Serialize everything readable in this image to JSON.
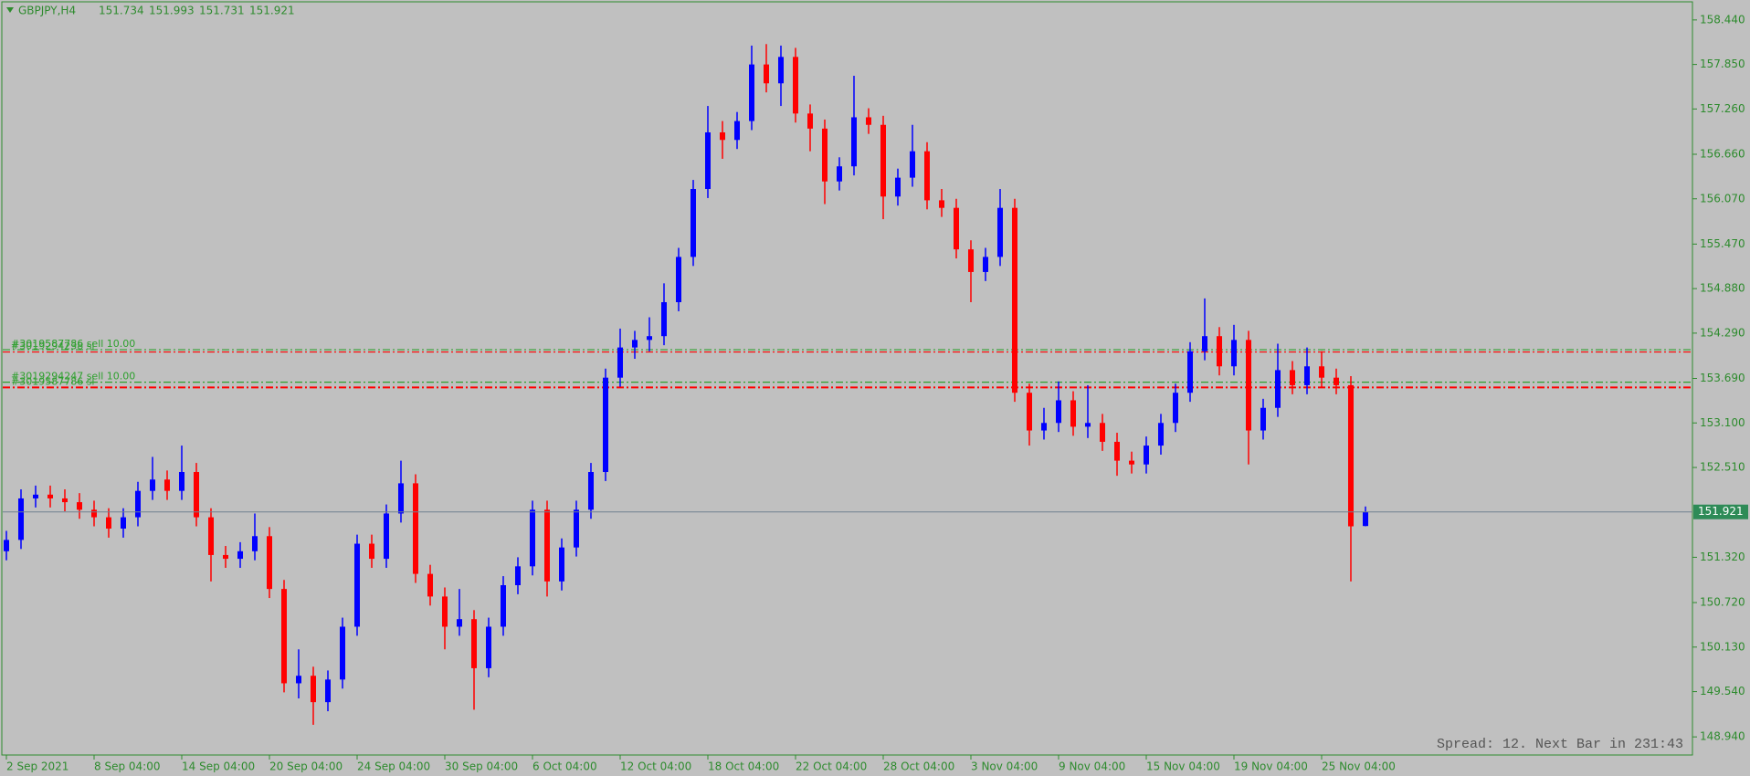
{
  "chart_data": {
    "type": "candlestick",
    "title": "GBPJPY,H4",
    "up_color": "#0000ff",
    "down_color": "#ff0000",
    "categories": [
      "2 Sep 2021",
      null,
      null,
      null,
      null,
      null,
      "8 Sep 04:00",
      null,
      null,
      null,
      null,
      null,
      "14 Sep 04:00",
      null,
      null,
      null,
      null,
      null,
      "20 Sep 04:00",
      null,
      null,
      null,
      null,
      null,
      "24 Sep 04:00",
      null,
      null,
      null,
      null,
      null,
      "30 Sep 04:00",
      null,
      null,
      null,
      null,
      null,
      "6 Oct 04:00",
      null,
      null,
      null,
      null,
      null,
      "12 Oct 04:00",
      null,
      null,
      null,
      null,
      null,
      "18 Oct 04:00",
      null,
      null,
      null,
      null,
      null,
      "22 Oct 04:00",
      null,
      null,
      null,
      null,
      null,
      "28 Oct 04:00",
      null,
      null,
      null,
      null,
      null,
      "3 Nov 04:00",
      null,
      null,
      null,
      null,
      null,
      "9 Nov 04:00",
      null,
      null,
      null,
      null,
      null,
      "15 Nov 04:00",
      null,
      null,
      null,
      null,
      null,
      "19 Nov 04:00",
      null,
      null,
      null,
      null,
      null,
      "25 Nov 04:00",
      null,
      null,
      null
    ],
    "open": [
      151.4,
      151.55,
      152.1,
      152.15,
      152.1,
      152.05,
      151.95,
      151.85,
      151.7,
      151.85,
      152.2,
      152.35,
      152.2,
      152.45,
      151.85,
      151.35,
      151.3,
      151.4,
      151.6,
      150.9,
      149.65,
      149.75,
      149.4,
      149.7,
      150.4,
      151.5,
      151.3,
      151.9,
      152.3,
      151.1,
      150.8,
      150.4,
      150.5,
      149.85,
      150.4,
      150.95,
      151.2,
      151.95,
      151.0,
      151.45,
      151.95,
      152.45,
      153.7,
      154.1,
      154.2,
      154.25,
      154.7,
      155.3,
      156.2,
      156.95,
      156.85,
      157.1,
      157.85,
      157.6,
      157.95,
      157.2,
      157.0,
      156.3,
      156.5,
      157.15,
      157.05,
      156.1,
      156.35,
      156.7,
      156.05,
      155.95,
      155.4,
      155.1,
      155.3,
      155.95,
      153.5,
      153.0,
      153.1,
      153.4,
      153.05,
      153.1,
      152.85,
      152.6,
      152.55,
      152.8,
      153.1,
      153.5,
      154.05,
      154.25,
      153.85,
      154.2,
      153.0,
      153.3,
      153.8,
      153.6,
      153.85,
      153.7,
      153.6,
      151.734
    ],
    "high": [
      151.67,
      152.22,
      152.27,
      152.27,
      152.22,
      152.17,
      152.07,
      151.97,
      151.97,
      152.32,
      152.65,
      152.47,
      152.8,
      152.57,
      151.97,
      151.47,
      151.52,
      151.9,
      151.72,
      151.02,
      150.1,
      149.87,
      149.82,
      150.52,
      151.62,
      151.62,
      152.02,
      152.6,
      152.42,
      151.22,
      150.92,
      150.9,
      150.62,
      150.52,
      151.07,
      151.32,
      152.07,
      152.07,
      151.57,
      152.07,
      152.57,
      153.82,
      154.35,
      154.32,
      154.5,
      154.95,
      155.42,
      156.32,
      157.3,
      157.1,
      157.22,
      158.1,
      158.12,
      158.1,
      158.07,
      157.32,
      157.12,
      156.62,
      157.7,
      157.27,
      157.17,
      156.47,
      157.05,
      156.82,
      156.2,
      156.07,
      155.52,
      155.42,
      156.2,
      156.07,
      153.62,
      153.3,
      153.65,
      153.52,
      153.6,
      153.22,
      152.97,
      152.72,
      152.92,
      153.22,
      153.62,
      154.17,
      154.75,
      154.37,
      154.4,
      154.32,
      153.42,
      154.15,
      153.92,
      154.1,
      154.05,
      153.82,
      153.72,
      151.993
    ],
    "low": [
      151.28,
      151.43,
      151.98,
      151.98,
      151.93,
      151.83,
      151.73,
      151.58,
      151.58,
      151.73,
      152.08,
      152.08,
      152.08,
      151.73,
      151.0,
      151.18,
      151.18,
      151.28,
      150.78,
      149.53,
      149.45,
      149.1,
      149.28,
      149.58,
      150.28,
      151.18,
      151.18,
      151.78,
      150.98,
      150.68,
      150.1,
      150.28,
      149.3,
      149.73,
      150.28,
      150.83,
      151.08,
      150.8,
      150.88,
      151.33,
      151.83,
      152.33,
      153.58,
      153.95,
      154.05,
      154.13,
      154.58,
      155.18,
      156.08,
      156.6,
      156.73,
      156.98,
      157.48,
      157.3,
      157.08,
      156.7,
      156.0,
      156.18,
      156.38,
      156.93,
      155.8,
      155.98,
      156.23,
      155.93,
      155.83,
      155.28,
      154.7,
      154.98,
      155.18,
      153.38,
      152.8,
      152.88,
      152.98,
      152.93,
      152.9,
      152.73,
      152.4,
      152.43,
      152.43,
      152.68,
      152.98,
      153.38,
      153.93,
      153.73,
      153.73,
      152.55,
      152.88,
      153.18,
      153.48,
      153.48,
      153.58,
      153.48,
      151.0,
      151.731
    ],
    "close": [
      151.55,
      152.1,
      152.15,
      152.1,
      152.05,
      151.95,
      151.85,
      151.7,
      151.85,
      152.2,
      152.35,
      152.2,
      152.45,
      151.85,
      151.35,
      151.3,
      151.4,
      151.6,
      150.9,
      149.65,
      149.75,
      149.4,
      149.7,
      150.4,
      151.5,
      151.3,
      151.9,
      152.3,
      151.1,
      150.8,
      150.4,
      150.5,
      149.85,
      150.4,
      150.95,
      151.2,
      151.95,
      151.0,
      151.45,
      151.95,
      152.45,
      153.7,
      154.1,
      154.2,
      154.25,
      154.7,
      155.3,
      156.2,
      156.95,
      156.85,
      157.1,
      157.85,
      157.6,
      157.95,
      157.2,
      157.0,
      156.3,
      156.5,
      157.15,
      157.05,
      156.1,
      156.35,
      156.7,
      156.05,
      155.95,
      155.4,
      155.1,
      155.3,
      155.95,
      153.5,
      153.0,
      153.1,
      153.4,
      153.05,
      153.1,
      152.85,
      152.6,
      152.55,
      152.8,
      153.1,
      153.5,
      154.05,
      154.25,
      153.85,
      154.2,
      153.0,
      153.3,
      153.8,
      153.6,
      153.85,
      153.7,
      153.6,
      151.73,
      151.921
    ],
    "ylim": [
      148.7,
      158.68
    ],
    "yticks": [
      {
        "value": 158.44,
        "label": "158.440"
      },
      {
        "value": 157.85,
        "label": "157.850"
      },
      {
        "value": 157.26,
        "label": "157.260"
      },
      {
        "value": 156.66,
        "label": "156.660"
      },
      {
        "value": 156.07,
        "label": "156.070"
      },
      {
        "value": 155.47,
        "label": "155.470"
      },
      {
        "value": 154.88,
        "label": "154.880"
      },
      {
        "value": 154.29,
        "label": "154.290"
      },
      {
        "value": 153.69,
        "label": "153.690"
      },
      {
        "value": 153.1,
        "label": "153.100"
      },
      {
        "value": 152.51,
        "label": "152.510"
      },
      {
        "value": 151.32,
        "label": "151.320"
      },
      {
        "value": 150.72,
        "label": "150.720"
      },
      {
        "value": 150.13,
        "label": "150.130"
      },
      {
        "value": 149.54,
        "label": "149.540"
      },
      {
        "value": 148.94,
        "label": "148.940"
      }
    ],
    "orders": [
      {
        "label": "#3019587786 sell 10.00",
        "price": 154.07,
        "color": "#2ea02e"
      },
      {
        "label": "#3019294238 sl",
        "price": 154.04,
        "color": "#ff0000"
      },
      {
        "label": "#3019294247 sell 10.00",
        "price": 153.64,
        "color": "#2ea02e"
      },
      {
        "label": "#3019587786 sl",
        "price": 153.57,
        "color": "#ff0000"
      }
    ],
    "status": "Spread: 12. Next Bar in 231:43"
  }
}
